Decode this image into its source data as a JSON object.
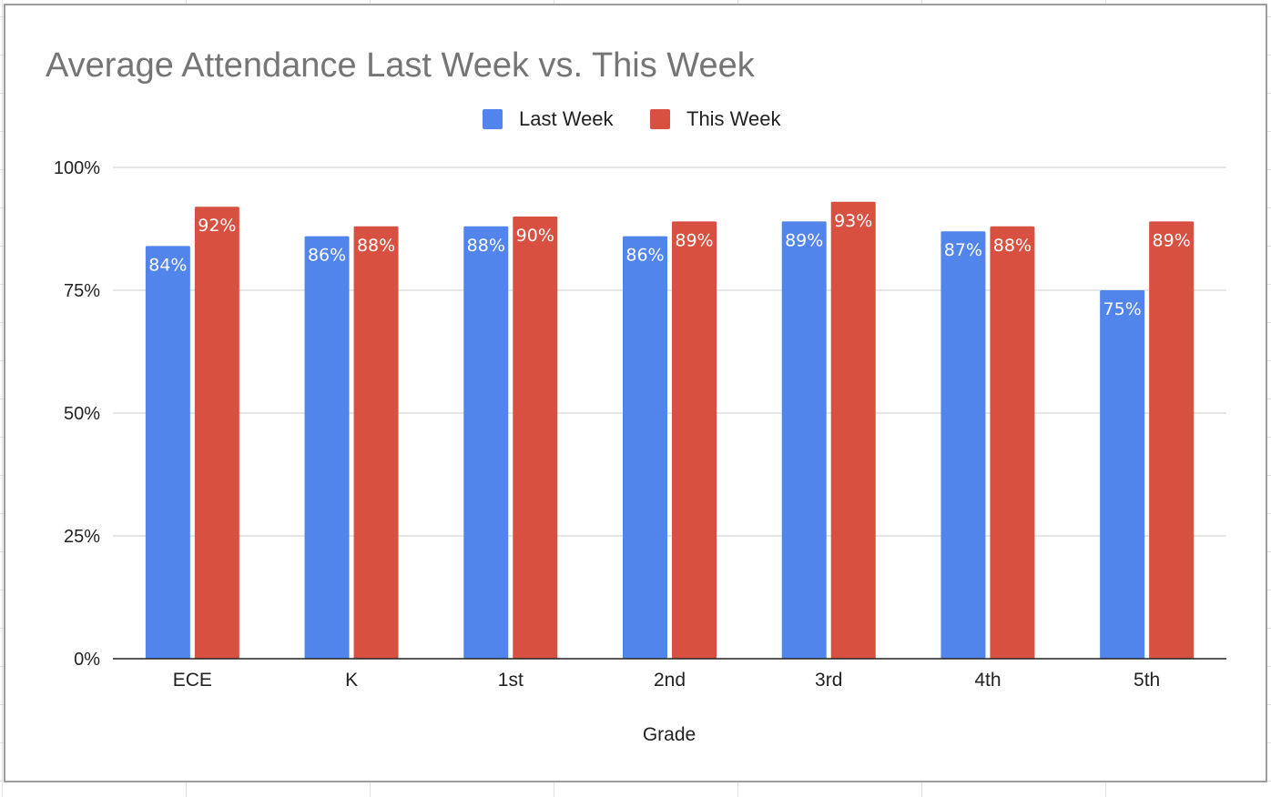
{
  "chart_data": {
    "type": "bar",
    "title": "Average Attendance Last Week vs. This Week",
    "xlabel": "Grade",
    "ylabel": "",
    "categories": [
      "ECE",
      "K",
      "1st",
      "2nd",
      "3rd",
      "4th",
      "5th"
    ],
    "series": [
      {
        "name": "Last Week",
        "color": "#5185ec",
        "values": [
          84,
          86,
          88,
          86,
          89,
          87,
          75
        ],
        "labels": [
          "84%",
          "86%",
          "88%",
          "86%",
          "89%",
          "87%",
          "75%"
        ]
      },
      {
        "name": "This Week",
        "color": "#d85140",
        "values": [
          92,
          88,
          90,
          89,
          93,
          88,
          89
        ],
        "labels": [
          "92%",
          "88%",
          "90%",
          "89%",
          "93%",
          "88%",
          "89%"
        ]
      }
    ],
    "ylim": [
      0,
      100
    ],
    "yticks": [
      0,
      25,
      50,
      75,
      100
    ],
    "ytick_labels": [
      "0%",
      "25%",
      "50%",
      "75%",
      "100%"
    ],
    "grid": true,
    "legend_position": "top-center",
    "data_labels": "inside-top"
  }
}
